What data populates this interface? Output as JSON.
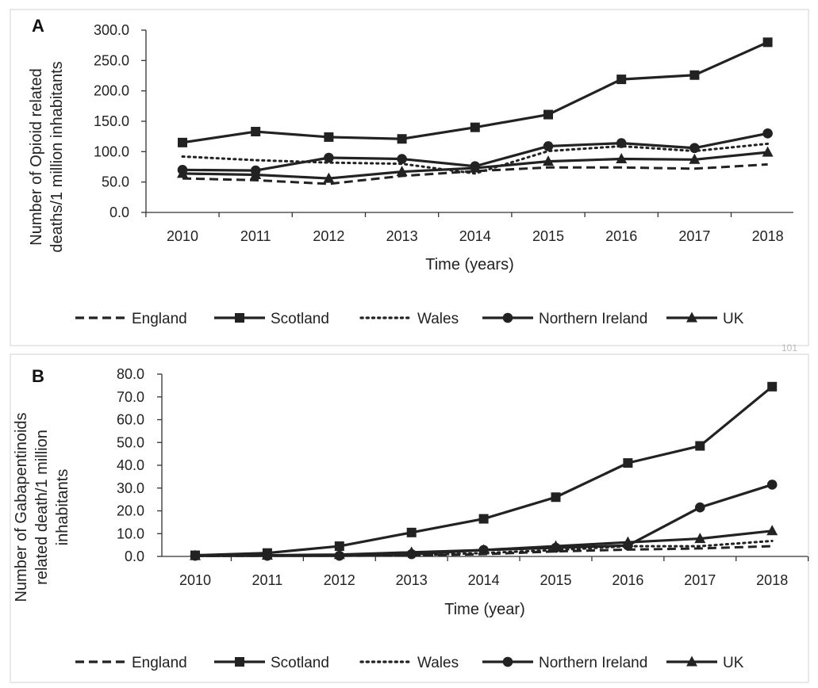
{
  "stray_text": "101",
  "chart_data": [
    {
      "type": "line",
      "panel_label": "A",
      "title": "",
      "xlabel": "Time (years)",
      "ylabel": [
        "Number of Opioid related",
        "deaths/1 million inhabitants"
      ],
      "x": [
        "2010",
        "2011",
        "2012",
        "2013",
        "2014",
        "2015",
        "2016",
        "2017",
        "2018"
      ],
      "ylim": [
        0,
        300
      ],
      "yticks": [
        "0.0",
        "50.0",
        "100.0",
        "150.0",
        "200.0",
        "250.0",
        "300.0"
      ],
      "legend_position": "bottom",
      "series": [
        {
          "name": "England",
          "style": "dashed",
          "marker": "none",
          "values": [
            56,
            53,
            47,
            60,
            68,
            74,
            74,
            72,
            79
          ]
        },
        {
          "name": "Scotland",
          "style": "solid",
          "marker": "square",
          "values": [
            115,
            133,
            124,
            121,
            140,
            161,
            219,
            226,
            280
          ]
        },
        {
          "name": "Wales",
          "style": "dotted",
          "marker": "none",
          "values": [
            92,
            86,
            82,
            80,
            64,
            101,
            109,
            101,
            113
          ]
        },
        {
          "name": "Northern Ireland",
          "style": "solid",
          "marker": "circle",
          "values": [
            70,
            69,
            90,
            88,
            76,
            109,
            114,
            106,
            130
          ]
        },
        {
          "name": "UK",
          "style": "solid",
          "marker": "triangle",
          "values": [
            64,
            62,
            56,
            67,
            73,
            84,
            88,
            87,
            99
          ]
        }
      ]
    },
    {
      "type": "line",
      "panel_label": "B",
      "title": "",
      "xlabel": "Time (year)",
      "ylabel": [
        "Number of Gabapentinoids",
        "related death/1 million",
        "inhabitants"
      ],
      "x": [
        "2010",
        "2011",
        "2012",
        "2013",
        "2014",
        "2015",
        "2016",
        "2017",
        "2018"
      ],
      "ylim": [
        0,
        80
      ],
      "yticks": [
        "0.0",
        "10.0",
        "20.0",
        "30.0",
        "40.0",
        "50.0",
        "60.0",
        "70.0",
        "80.0"
      ],
      "legend_position": "bottom",
      "series": [
        {
          "name": "England",
          "style": "dashed",
          "marker": "none",
          "values": [
            0.2,
            0.3,
            0.3,
            0.4,
            1.0,
            2.2,
            3.0,
            3.5,
            4.5
          ]
        },
        {
          "name": "Scotland",
          "style": "solid",
          "marker": "square",
          "values": [
            0.5,
            1.5,
            4.5,
            10.5,
            16.5,
            26.0,
            41.0,
            48.5,
            74.5
          ]
        },
        {
          "name": "Wales",
          "style": "dotted",
          "marker": "none",
          "values": [
            0.2,
            0.3,
            0.3,
            0.5,
            1.5,
            2.8,
            4.5,
            4.5,
            6.8
          ]
        },
        {
          "name": "Northern Ireland",
          "style": "solid",
          "marker": "circle",
          "values": [
            0.3,
            0.3,
            0.3,
            1.0,
            2.8,
            3.8,
            4.8,
            21.5,
            31.5
          ]
        },
        {
          "name": "UK",
          "style": "solid",
          "marker": "triangle",
          "values": [
            0.3,
            0.5,
            0.8,
            1.8,
            2.8,
            4.5,
            6.2,
            7.8,
            11.2
          ]
        }
      ]
    }
  ]
}
